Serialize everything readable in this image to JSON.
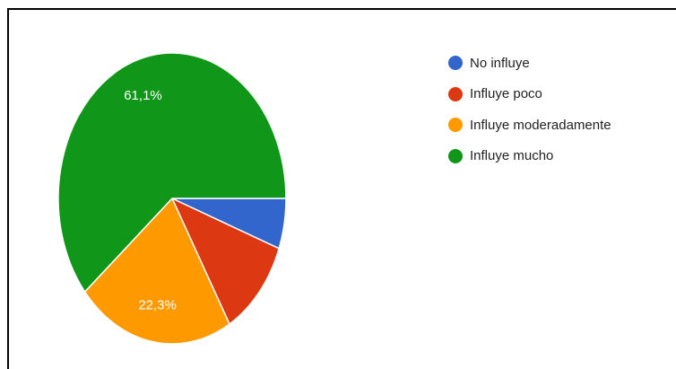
{
  "chart_data": {
    "type": "pie",
    "slices": [
      {
        "label": "No influye",
        "value": 5.6,
        "color": "#3366cc"
      },
      {
        "label": "Influye poco",
        "value": 11.0,
        "color": "#dc3912"
      },
      {
        "label": "Influye moderadamente",
        "value": 22.3,
        "color": "#ff9900"
      },
      {
        "label": "Influye mucho",
        "value": 61.1,
        "color": "#109618"
      }
    ],
    "data_labels": [
      "",
      "",
      "22,3%",
      "61,1%"
    ],
    "legend_position": "right",
    "start_angle_deg": 0,
    "direction": "clockwise"
  }
}
